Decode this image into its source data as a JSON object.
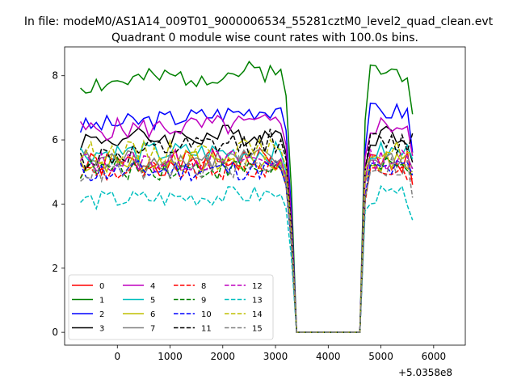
{
  "chart_data": {
    "type": "line",
    "suptitle": "In file: modeM0/AS1A14_009T01_9000006534_55281cztM0_level2_quad_clean.evt",
    "title": "Quadrant 0 module wise count rates with 100.0s bins.",
    "xlabel": "",
    "ylabel": "",
    "x_offset_label": "+5.0358e8",
    "xlim": [
      -1000,
      6600
    ],
    "ylim": [
      -0.4,
      8.9
    ],
    "xticks": [
      0,
      1000,
      2000,
      3000,
      4000,
      5000,
      6000
    ],
    "xtick_labels": [
      "0",
      "1000",
      "2000",
      "3000",
      "4000",
      "5000",
      "6000"
    ],
    "yticks": [
      0,
      2,
      4,
      6,
      8
    ],
    "ytick_labels": [
      "0",
      "2",
      "4",
      "6",
      "8"
    ],
    "x_start": -700,
    "x_step": 100,
    "gap": {
      "drop_start_index": 38,
      "drop_end_index": 42,
      "zero_from_index": 41,
      "zero_to_index": 53,
      "rise_end_index": 55
    },
    "legend_position": "lower-left",
    "legend_columns": 4,
    "series": [
      {
        "name": "0",
        "color": "#ff0000",
        "dash": "solid",
        "base": 5.2,
        "amp": 0.4,
        "trend": 0.2,
        "seed": 1,
        "end": 4.6
      },
      {
        "name": "1",
        "color": "#008000",
        "dash": "solid",
        "base": 7.7,
        "amp": 0.35,
        "trend": 0.5,
        "seed": 2,
        "end": 6.8
      },
      {
        "name": "2",
        "color": "#0000ff",
        "dash": "solid",
        "base": 6.4,
        "amp": 0.3,
        "trend": 0.6,
        "seed": 3,
        "end": 5.6
      },
      {
        "name": "3",
        "color": "#000000",
        "dash": "solid",
        "base": 6.0,
        "amp": 0.35,
        "trend": 0.2,
        "seed": 4,
        "end": 5.3
      },
      {
        "name": "4",
        "color": "#bf00bf",
        "dash": "solid",
        "base": 6.3,
        "amp": 0.35,
        "trend": 0.2,
        "seed": 5,
        "end": 5.5
      },
      {
        "name": "5",
        "color": "#00bfbf",
        "dash": "solid",
        "base": 5.6,
        "amp": 0.35,
        "trend": 0.0,
        "seed": 6,
        "end": 5.4
      },
      {
        "name": "6",
        "color": "#bfbf00",
        "dash": "solid",
        "base": 5.3,
        "amp": 0.35,
        "trend": 0.0,
        "seed": 7,
        "end": 5.0
      },
      {
        "name": "7",
        "color": "#808080",
        "dash": "solid",
        "base": 5.4,
        "amp": 0.35,
        "trend": 0.0,
        "seed": 8,
        "end": 5.1
      },
      {
        "name": "8",
        "color": "#ff0000",
        "dash": "dashed",
        "base": 5.0,
        "amp": 0.35,
        "trend": 0.1,
        "seed": 9,
        "end": 4.8
      },
      {
        "name": "9",
        "color": "#008000",
        "dash": "dashed",
        "base": 5.1,
        "amp": 0.35,
        "trend": 0.0,
        "seed": 10,
        "end": 4.9
      },
      {
        "name": "10",
        "color": "#0000ff",
        "dash": "dashed",
        "base": 5.0,
        "amp": 0.35,
        "trend": 0.1,
        "seed": 11,
        "end": 4.9
      },
      {
        "name": "11",
        "color": "#000000",
        "dash": "dashed",
        "base": 5.4,
        "amp": 0.4,
        "trend": 0.6,
        "seed": 12,
        "end": 6.2
      },
      {
        "name": "12",
        "color": "#bf00bf",
        "dash": "dashed",
        "base": 5.3,
        "amp": 0.35,
        "trend": 0.1,
        "seed": 13,
        "end": 5.1
      },
      {
        "name": "13",
        "color": "#00bfbf",
        "dash": "dashed",
        "base": 4.1,
        "amp": 0.3,
        "trend": 0.2,
        "seed": 14,
        "end": 3.5
      },
      {
        "name": "14",
        "color": "#bfbf00",
        "dash": "dashed",
        "base": 5.6,
        "amp": 0.35,
        "trend": 0.1,
        "seed": 15,
        "end": 5.6
      },
      {
        "name": "15",
        "color": "#808080",
        "dash": "dashed",
        "base": 5.0,
        "amp": 0.35,
        "trend": 0.2,
        "seed": 16,
        "end": 4.2
      }
    ]
  }
}
